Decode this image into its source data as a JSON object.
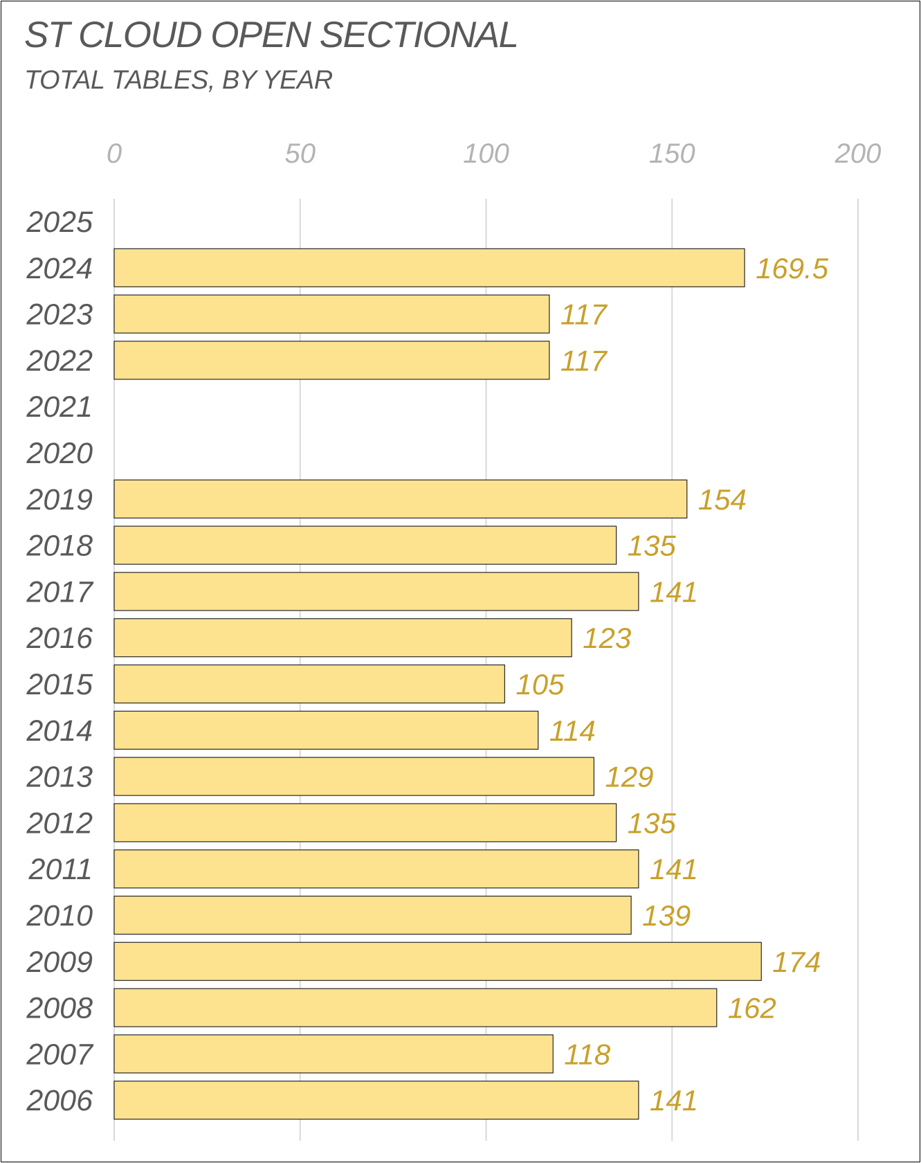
{
  "title": "ST CLOUD OPEN SECTIONAL",
  "subtitle": "TOTAL TABLES, BY YEAR",
  "colors": {
    "bar_fill": "#fde38f",
    "bar_stroke": "#262626",
    "value_label": "#c9a02a",
    "grid": "#d9d9d9"
  },
  "chart_data": {
    "type": "bar",
    "orientation": "horizontal",
    "title": "ST CLOUD OPEN SECTIONAL",
    "subtitle": "TOTAL TABLES, BY YEAR",
    "xlim": [
      0,
      200
    ],
    "xticks": [
      "0",
      "50",
      "100",
      "150",
      "200"
    ],
    "xtick_values": [
      0,
      50,
      100,
      150,
      200
    ],
    "x_axis_position": "top",
    "grid": true,
    "categories": [
      "2025",
      "2024",
      "2023",
      "2022",
      "2021",
      "2020",
      "2019",
      "2018",
      "2017",
      "2016",
      "2015",
      "2014",
      "2013",
      "2012",
      "2011",
      "2010",
      "2009",
      "2008",
      "2007",
      "2006"
    ],
    "values": [
      null,
      169.5,
      117,
      117,
      null,
      null,
      154,
      135,
      141,
      123,
      105,
      114,
      129,
      135,
      141,
      139,
      174,
      162,
      118,
      141
    ],
    "value_labels": [
      "",
      "169.5",
      "117",
      "117",
      "",
      "",
      "154",
      "135",
      "141",
      "123",
      "105",
      "114",
      "129",
      "135",
      "141",
      "139",
      "174",
      "162",
      "118",
      "141"
    ]
  }
}
